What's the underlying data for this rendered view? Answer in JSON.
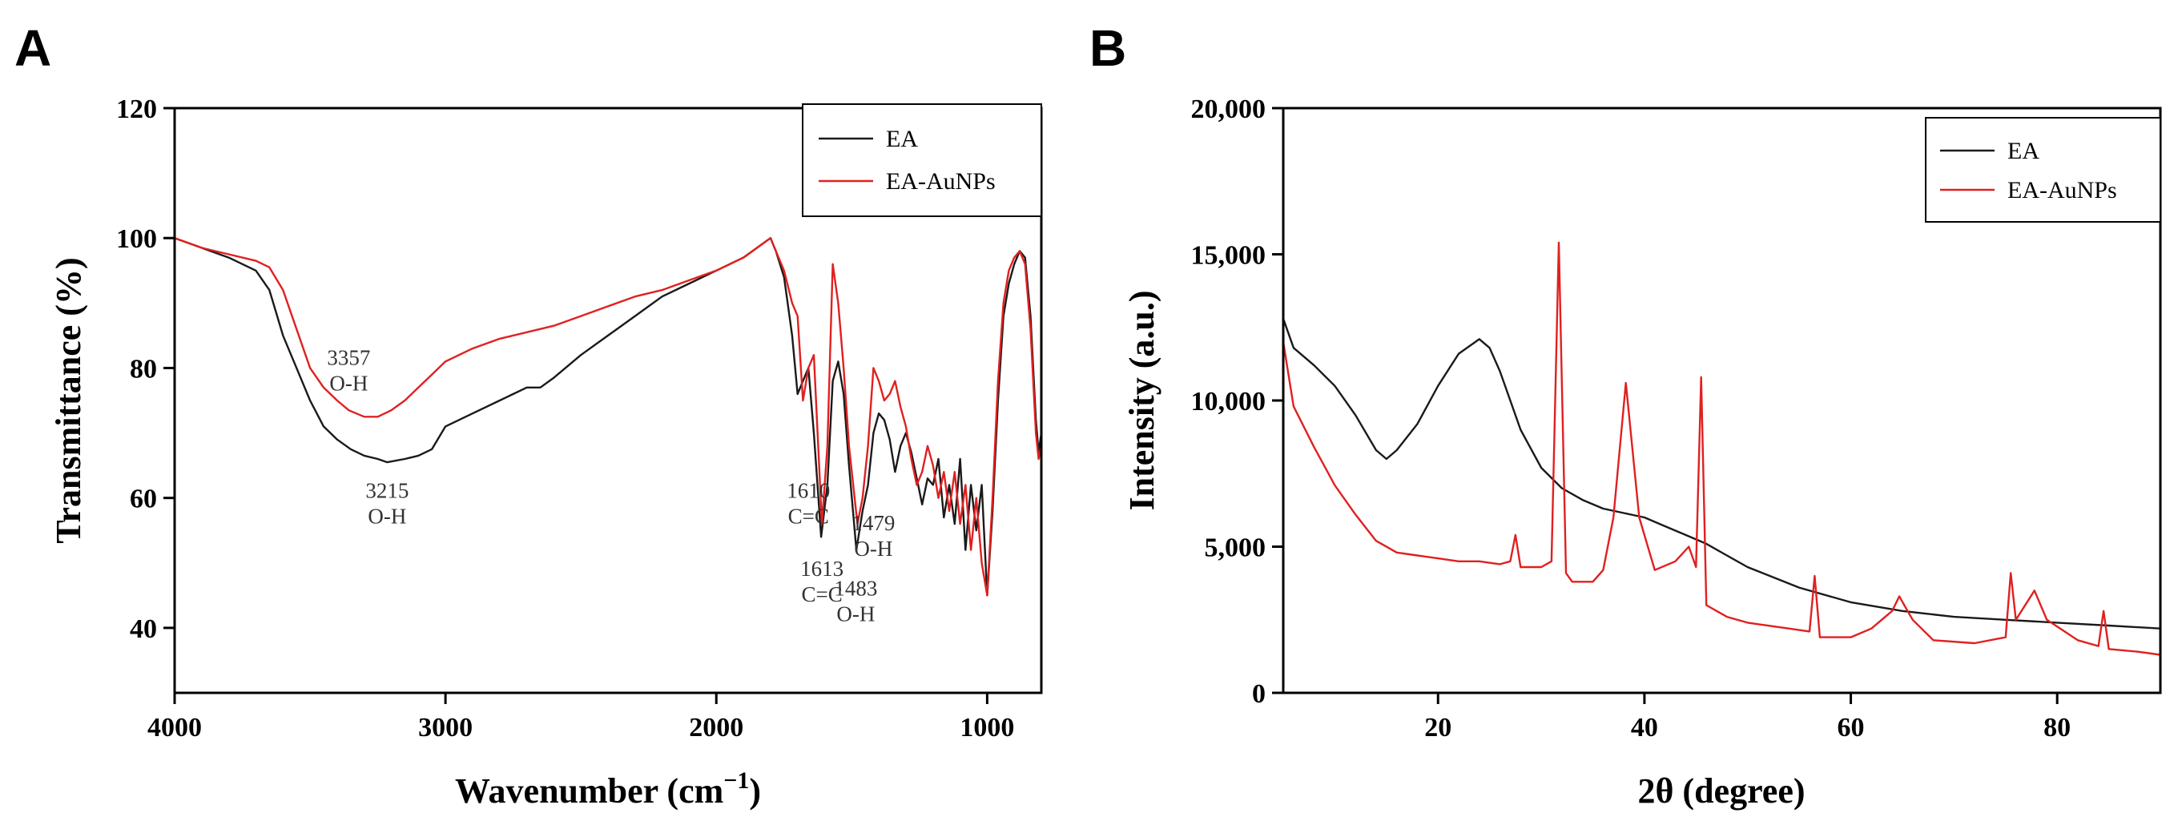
{
  "panels": {
    "A": {
      "letter": "A"
    },
    "B": {
      "letter": "B"
    }
  },
  "chart_data": [
    {
      "type": "line",
      "panel": "A",
      "title": "",
      "xlabel_main": "Wavenumber (cm",
      "xlabel_sup": "−1",
      "xlabel_end": ")",
      "ylabel": "Transmittance (%)",
      "xlim": [
        4000,
        800
      ],
      "ylim": [
        30,
        120
      ],
      "x_ticks": [
        4000,
        3000,
        2000,
        1000
      ],
      "x_tick_labels": [
        "4000",
        "3000",
        "2000",
        "1000"
      ],
      "y_ticks": [
        40,
        60,
        80,
        100,
        120
      ],
      "y_tick_labels": [
        "40",
        "60",
        "80",
        "100",
        "120"
      ],
      "legend": [
        "EA",
        "EA-AuNPs"
      ],
      "legend_position": "top-right",
      "colors": {
        "EA": "#1a1a1a",
        "EA-AuNPs": "#e02020"
      },
      "series": [
        {
          "name": "EA",
          "x": [
            4000,
            3900,
            3800,
            3700,
            3650,
            3600,
            3550,
            3500,
            3450,
            3400,
            3350,
            3300,
            3250,
            3215,
            3150,
            3100,
            3050,
            3000,
            2900,
            2800,
            2700,
            2650,
            2600,
            2500,
            2400,
            2300,
            2200,
            2100,
            2000,
            1900,
            1800,
            1780,
            1750,
            1720,
            1700,
            1680,
            1660,
            1640,
            1613,
            1590,
            1570,
            1550,
            1530,
            1510,
            1483,
            1460,
            1440,
            1420,
            1400,
            1380,
            1360,
            1340,
            1320,
            1300,
            1280,
            1260,
            1240,
            1220,
            1200,
            1180,
            1160,
            1140,
            1120,
            1100,
            1080,
            1060,
            1040,
            1020,
            1000,
            980,
            960,
            940,
            920,
            900,
            880,
            860,
            840,
            820,
            810,
            800
          ],
          "y": [
            100,
            98.5,
            97,
            95,
            92,
            85,
            80,
            75,
            71,
            69,
            67.5,
            66.5,
            66,
            65.5,
            66,
            66.5,
            67.5,
            71,
            73,
            75,
            77,
            77,
            78.5,
            82,
            85,
            88,
            91,
            93,
            95,
            97,
            100,
            98,
            94,
            85,
            76,
            78,
            80,
            70,
            54,
            62,
            78,
            81,
            76,
            65,
            52,
            58,
            62,
            70,
            73,
            72,
            69,
            64,
            68,
            70,
            67,
            63,
            59,
            63,
            62,
            66,
            57,
            62,
            56,
            66,
            52,
            62,
            55,
            62,
            45,
            58,
            75,
            88,
            93,
            96,
            98,
            97,
            88,
            72,
            67,
            70
          ]
        },
        {
          "name": "EA-AuNPs",
          "x": [
            4000,
            3900,
            3800,
            3700,
            3650,
            3600,
            3550,
            3500,
            3450,
            3400,
            3357,
            3300,
            3250,
            3200,
            3150,
            3100,
            3050,
            3000,
            2900,
            2800,
            2700,
            2600,
            2500,
            2400,
            2300,
            2200,
            2100,
            2000,
            1900,
            1800,
            1780,
            1750,
            1720,
            1700,
            1680,
            1660,
            1640,
            1610,
            1590,
            1570,
            1550,
            1530,
            1510,
            1479,
            1460,
            1440,
            1420,
            1400,
            1380,
            1360,
            1340,
            1320,
            1300,
            1280,
            1260,
            1240,
            1220,
            1200,
            1180,
            1160,
            1140,
            1120,
            1100,
            1080,
            1060,
            1040,
            1020,
            1000,
            980,
            960,
            940,
            920,
            900,
            880,
            860,
            840,
            820,
            810,
            800
          ],
          "y": [
            100,
            98.5,
            97.5,
            96.5,
            95.5,
            92,
            86,
            80,
            77,
            75,
            73.5,
            72.5,
            72.5,
            73.5,
            75,
            77,
            79,
            81,
            83,
            84.5,
            85.5,
            86.5,
            88,
            89.5,
            91,
            92,
            93.5,
            95,
            97,
            100,
            98,
            95,
            90,
            88,
            75,
            80,
            82,
            56,
            68,
            96,
            90,
            80,
            68,
            56,
            60,
            68,
            80,
            78,
            75,
            76,
            78,
            74,
            71,
            66,
            62,
            64,
            68,
            65,
            60,
            64,
            58,
            64,
            56,
            62,
            52,
            60,
            50,
            45,
            60,
            78,
            90,
            95,
            97,
            98,
            96,
            86,
            70,
            66,
            68
          ]
        }
      ],
      "annotations": [
        {
          "lines": [
            "3357",
            "O-H"
          ],
          "x": 3357,
          "y": 80.5
        },
        {
          "lines": [
            "3215",
            "O-H"
          ],
          "x": 3215,
          "y": 60
        },
        {
          "lines": [
            "1610",
            "C=C"
          ],
          "x": 1660,
          "y": 60
        },
        {
          "lines": [
            "1479",
            "O-H"
          ],
          "x": 1420,
          "y": 55
        },
        {
          "lines": [
            "1613",
            "C=C"
          ],
          "x": 1610,
          "y": 48
        },
        {
          "lines": [
            "1483",
            "O-H"
          ],
          "x": 1485,
          "y": 45
        }
      ]
    },
    {
      "type": "line",
      "panel": "B",
      "title": "",
      "xlabel": "2θ (degree)",
      "ylabel": "Intensity (a.u.)",
      "xlim": [
        5,
        90
      ],
      "ylim": [
        0,
        20000
      ],
      "x_ticks": [
        20,
        40,
        60,
        80
      ],
      "x_tick_labels": [
        "20",
        "40",
        "60",
        "80"
      ],
      "y_ticks": [
        0,
        5000,
        10000,
        15000,
        20000
      ],
      "y_tick_labels": [
        "0",
        "5,000",
        "10,000",
        "15,000",
        "20,000"
      ],
      "legend": [
        "EA",
        "EA-AuNPs"
      ],
      "legend_position": "top-right",
      "colors": {
        "EA": "#1a1a1a",
        "EA-AuNPs": "#e02020"
      },
      "series": [
        {
          "name": "EA",
          "x": [
            5,
            6,
            8,
            10,
            12,
            14,
            15,
            16,
            18,
            20,
            22,
            24,
            25,
            26,
            28,
            30,
            32,
            34,
            36,
            38,
            40,
            42,
            44,
            46,
            48,
            50,
            55,
            60,
            65,
            70,
            75,
            80,
            85,
            90
          ],
          "y": [
            12800,
            11800,
            11200,
            10500,
            9500,
            8300,
            8000,
            8300,
            9200,
            10500,
            11600,
            12100,
            11800,
            11000,
            9000,
            7700,
            7000,
            6600,
            6300,
            6150,
            6000,
            5700,
            5400,
            5100,
            4700,
            4300,
            3600,
            3100,
            2800,
            2600,
            2500,
            2400,
            2300,
            2200
          ]
        },
        {
          "name": "EA-AuNPs",
          "x": [
            5,
            6,
            8,
            10,
            12,
            14,
            16,
            18,
            20,
            22,
            24,
            26,
            27,
            27.5,
            28,
            30,
            31,
            31.7,
            32.4,
            33,
            35,
            36,
            37,
            38.2,
            39.5,
            41,
            43,
            44.3,
            45,
            45.5,
            46,
            48,
            50,
            54,
            56,
            56.5,
            57,
            60,
            62,
            64,
            64.7,
            65.5,
            66,
            68,
            72,
            75,
            75.5,
            76,
            77.8,
            79,
            82,
            84,
            84.5,
            85,
            88,
            90
          ],
          "y": [
            12000,
            9800,
            8400,
            7100,
            6100,
            5200,
            4800,
            4700,
            4600,
            4500,
            4500,
            4400,
            4500,
            5400,
            4300,
            4300,
            4500,
            15400,
            4100,
            3800,
            3800,
            4200,
            6000,
            10600,
            6000,
            4200,
            4500,
            5000,
            4300,
            10800,
            3000,
            2600,
            2400,
            2200,
            2100,
            4000,
            1900,
            1900,
            2200,
            2800,
            3300,
            2800,
            2500,
            1800,
            1700,
            1900,
            4100,
            2500,
            3500,
            2500,
            1800,
            1600,
            2800,
            1500,
            1400,
            1300
          ]
        }
      ],
      "annotations": []
    }
  ]
}
